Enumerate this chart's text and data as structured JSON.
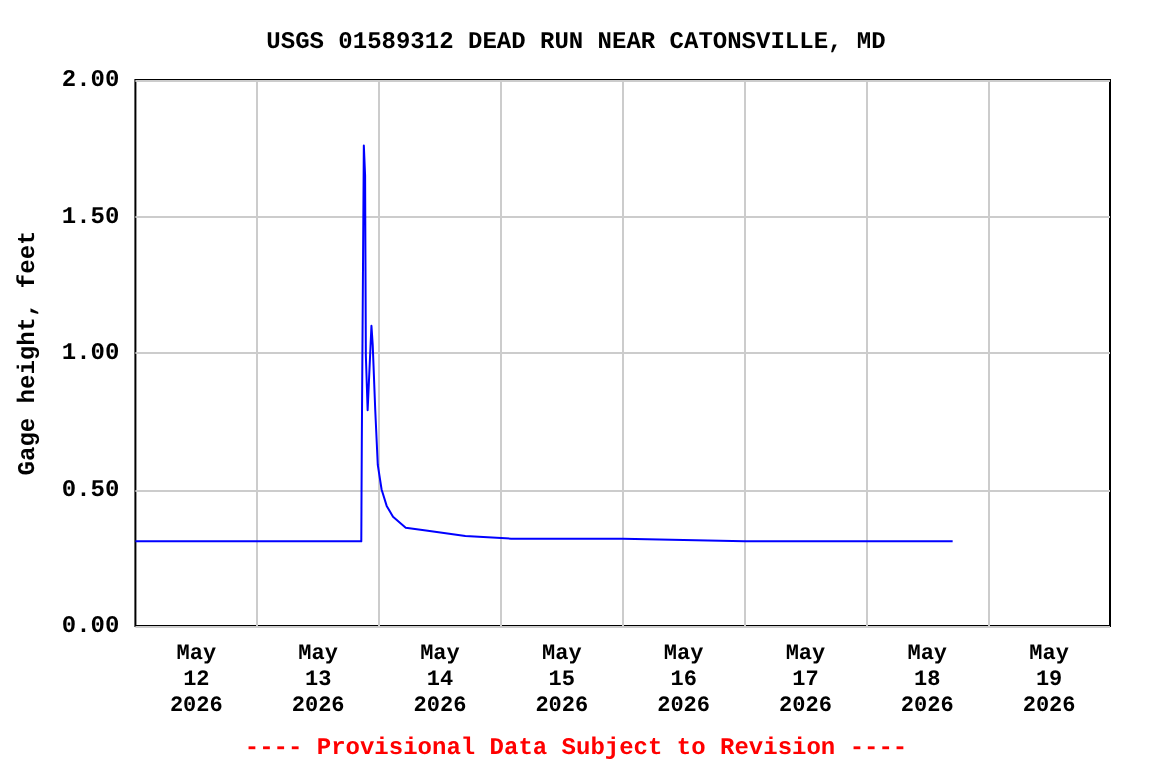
{
  "chart_data": {
    "type": "line",
    "title": "USGS 01589312 DEAD RUN NEAR CATONSVILLE, MD",
    "ylabel": "Gage height, feet",
    "annotations": [
      "---- Provisional Data Subject to Revision ----"
    ],
    "x": [
      "2026-05-12T00:00",
      "2026-05-13T20:30",
      "2026-05-13T20:36",
      "2026-05-13T21:00",
      "2026-05-13T21:15",
      "2026-05-13T21:24",
      "2026-05-13T21:45",
      "2026-05-13T22:30",
      "2026-05-13T22:45",
      "2026-05-13T23:15",
      "2026-05-13T23:45",
      "2026-05-14T00:30",
      "2026-05-14T01:30",
      "2026-05-14T02:45",
      "2026-05-14T05:15",
      "2026-05-14T09:15",
      "2026-05-14T17:00",
      "2026-05-15T02:00",
      "2026-05-16T00:00",
      "2026-05-17T00:00",
      "2026-05-18T17:00"
    ],
    "series": [
      {
        "color": "#0000ff",
        "values": [
          0.31,
          0.31,
          0.67,
          1.76,
          1.65,
          0.99,
          0.79,
          1.1,
          1.03,
          0.79,
          0.59,
          0.5,
          0.44,
          0.4,
          0.36,
          0.35,
          0.33,
          0.32,
          0.32,
          0.31,
          0.31
        ]
      }
    ],
    "xlim": [
      "2026-05-12T00:00",
      "2026-05-20T00:00"
    ],
    "xticks": [
      {
        "value": "2026-05-12T12:00",
        "label": "May\n12\n2026"
      },
      {
        "value": "2026-05-13T12:00",
        "label": "May\n13\n2026"
      },
      {
        "value": "2026-05-14T12:00",
        "label": "May\n14\n2026"
      },
      {
        "value": "2026-05-15T12:00",
        "label": "May\n15\n2026"
      },
      {
        "value": "2026-05-16T12:00",
        "label": "May\n16\n2026"
      },
      {
        "value": "2026-05-17T12:00",
        "label": "May\n17\n2026"
      },
      {
        "value": "2026-05-18T12:00",
        "label": "May\n18\n2026"
      },
      {
        "value": "2026-05-19T12:00",
        "label": "May\n19\n2026"
      },
      {
        "value": "2026-05-13T00:00",
        "label": null
      },
      {
        "value": "2026-05-14T00:00",
        "label": null
      },
      {
        "value": "2026-05-15T00:00",
        "label": null
      },
      {
        "value": "2026-05-16T00:00",
        "label": null
      },
      {
        "value": "2026-05-17T00:00",
        "label": null
      },
      {
        "value": "2026-05-18T00:00",
        "label": null
      },
      {
        "value": "2026-05-19T00:00",
        "label": null
      }
    ],
    "ylim": [
      0,
      2
    ],
    "yticks": [
      {
        "value": 0,
        "label": "0.00"
      },
      {
        "value": 0.5,
        "label": "0.50"
      },
      {
        "value": 1,
        "label": "1.00"
      },
      {
        "value": 1.5,
        "label": "1.50"
      },
      {
        "value": 2,
        "label": "2.00"
      }
    ],
    "grid": true,
    "marker": "none",
    "line_style": "solid"
  }
}
